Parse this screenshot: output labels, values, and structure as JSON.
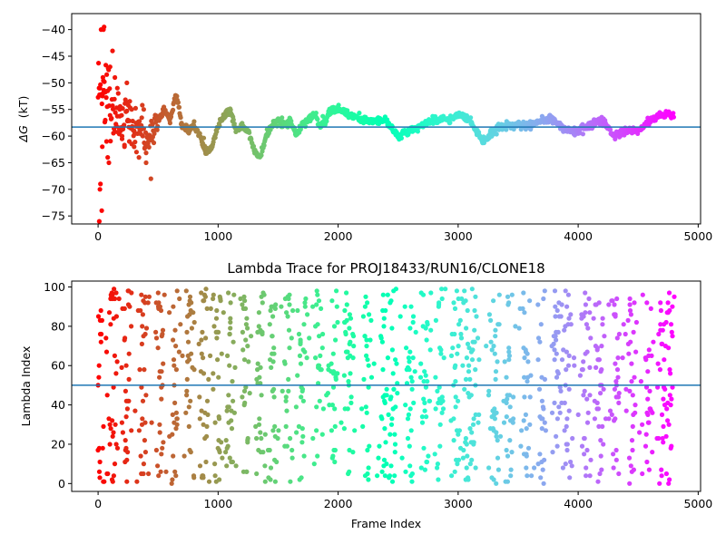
{
  "chart_data": [
    {
      "type": "scatter",
      "title": "",
      "xlabel": "",
      "ylabel_symbol": "ΔG",
      "ylabel_unit": "(kT)",
      "xlim": [
        -220,
        5020
      ],
      "ylim": [
        -76.5,
        -37.0
      ],
      "xticks": [
        0,
        1000,
        2000,
        3000,
        4000,
        5000
      ],
      "yticks": [
        -75,
        -70,
        -65,
        -60,
        -55,
        -50,
        -45,
        -40
      ],
      "frame_count": 4800,
      "colormap": "rainbow_reversed",
      "reference_line": {
        "y": -58.3,
        "color": "#1f77b4"
      },
      "series": [
        {
          "points_note_colors": "color by frame index: red at 0 → violet at 4800",
          "x": [
            0,
            20,
            40,
            60,
            80,
            100,
            150,
            200,
            250,
            300,
            350,
            400,
            450,
            500,
            550,
            600,
            650,
            700,
            750,
            800,
            850,
            900,
            950,
            1000,
            1050,
            1100,
            1150,
            1200,
            1250,
            1300,
            1350,
            1400,
            1450,
            1500,
            1550,
            1600,
            1650,
            1700,
            1750,
            1800,
            1850,
            1900,
            1950,
            2000,
            2100,
            2200,
            2300,
            2400,
            2500,
            2600,
            2700,
            2800,
            2900,
            3000,
            3100,
            3200,
            3300,
            3400,
            3500,
            3600,
            3700,
            3800,
            3900,
            4000,
            4100,
            4200,
            4300,
            4400,
            4500,
            4600,
            4700,
            4790
          ],
          "y": [
            -50,
            -48,
            -53,
            -51,
            -48,
            -56,
            -58,
            -57,
            -56,
            -59,
            -58,
            -61,
            -60,
            -57,
            -55,
            -57,
            -52,
            -58,
            -59,
            -58,
            -60,
            -63,
            -62,
            -58,
            -56,
            -55,
            -59,
            -58,
            -59,
            -63,
            -64,
            -60,
            -58,
            -57,
            -58,
            -57,
            -60,
            -58,
            -57,
            -56,
            -58,
            -57,
            -55,
            -55,
            -56,
            -57,
            -57,
            -57,
            -60,
            -59,
            -58,
            -57,
            -57,
            -56,
            -57,
            -61,
            -59,
            -58,
            -58,
            -58,
            -57,
            -57,
            -59,
            -59,
            -58,
            -57,
            -60,
            -59,
            -59,
            -57,
            -56,
            -56
          ]
        }
      ],
      "early_scatter": {
        "x": [
          10,
          15,
          20,
          25,
          30,
          35,
          40,
          45,
          50,
          60,
          70,
          80,
          90,
          100,
          120,
          140,
          160,
          180,
          200,
          220,
          240,
          260,
          280,
          300,
          320,
          340,
          360,
          380,
          400,
          420,
          440,
          460
        ],
        "y": [
          -76,
          -70,
          -69,
          -40,
          -74,
          -62,
          -52,
          -40,
          -39.5,
          -57,
          -61,
          -64,
          -65,
          -47,
          -44,
          -49,
          -51,
          -55,
          -60,
          -62,
          -50,
          -61,
          -55,
          -59,
          -63,
          -64,
          -58,
          -55,
          -65,
          -60,
          -68,
          -59
        ]
      }
    },
    {
      "type": "scatter",
      "title": "Lambda Trace for PROJ18433/RUN16/CLONE18",
      "xlabel": "Frame Index",
      "ylabel": "Lambda Index",
      "xlim": [
        -220,
        5020
      ],
      "ylim": [
        -4,
        103
      ],
      "xticks": [
        0,
        1000,
        2000,
        3000,
        4000,
        5000
      ],
      "yticks": [
        0,
        20,
        40,
        60,
        80,
        100
      ],
      "frame_count": 4800,
      "colormap": "rainbow_reversed",
      "reference_line": {
        "y": 50,
        "color": "#1f77b4"
      },
      "value_range": [
        0,
        99
      ],
      "cluster_centers_x": [
        0,
        120,
        240,
        380,
        520,
        640,
        760,
        880,
        1000,
        1100,
        1230,
        1350,
        1460,
        1580,
        1700,
        1830,
        1960,
        2090,
        2240,
        2380,
        2450,
        2600,
        2730,
        2850,
        2980,
        3080,
        3130,
        3300,
        3420,
        3560,
        3700,
        3820,
        3910,
        4060,
        4180,
        4320,
        4440,
        4580,
        4700,
        4760
      ]
    }
  ]
}
